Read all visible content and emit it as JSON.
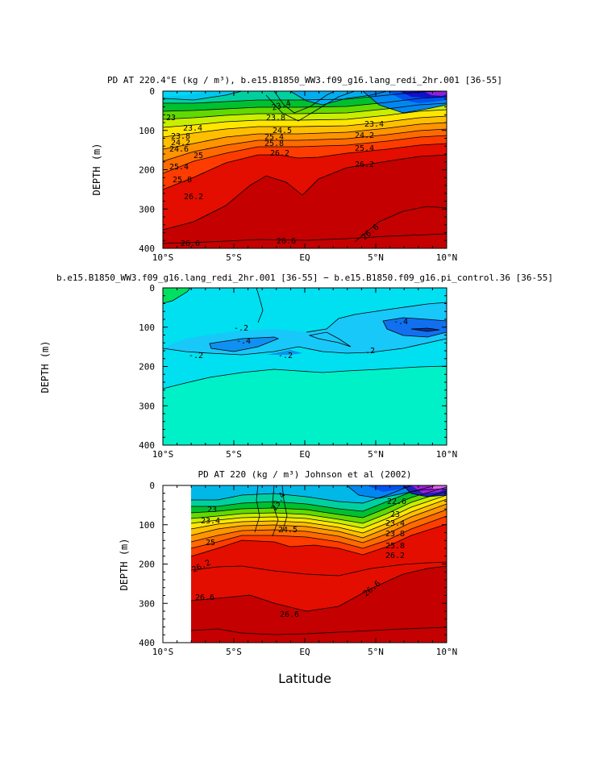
{
  "figure": {
    "xlabel": "Latitude"
  },
  "chart_data": [
    {
      "type": "contour",
      "title": "PD AT 220.4°E (kg / m³), b.e15.B1850_WW3.f09_g16.lang_redi_2hr.001 [36-55]",
      "ylabel": "DEPTH (m)",
      "xlim": [
        -10,
        10
      ],
      "ylim": [
        400,
        0
      ],
      "x_ticks": [
        "10°S",
        "5°S",
        "EQ",
        "5°N",
        "10°N"
      ],
      "y_ticks": [
        "0",
        "100",
        "200",
        "300",
        "400"
      ],
      "data_start_lat": -10,
      "levels": [
        22.6,
        23,
        23.4,
        23.8,
        24.2,
        24.6,
        25,
        25.4,
        25.8,
        26.2,
        26.6
      ],
      "contour_labels": [
        "23",
        "23.4",
        "23.8",
        "24.2",
        "24.6",
        "25",
        "25.4",
        "25.8",
        "26.2",
        "26.6",
        "24.5",
        "22.6"
      ]
    },
    {
      "type": "contour",
      "title": "b.e15.B1850_WW3.f09_g16.lang_redi_2hr.001 [36-55] − b.e15.B1850.f09_g16.pi_control.36 [36-55]",
      "ylabel": "DEPTH (m)",
      "xlim": [
        -10,
        10
      ],
      "ylim": [
        400,
        0
      ],
      "x_ticks": [
        "10°S",
        "5°S",
        "EQ",
        "5°N",
        "10°N"
      ],
      "y_ticks": [
        "0",
        "100",
        "200",
        "300",
        "400"
      ],
      "data_start_lat": -10,
      "levels": [
        -0.6,
        -0.4,
        -0.2,
        0,
        0.2
      ],
      "contour_labels": [
        "-.2",
        "-.4",
        "-.2",
        ".2",
        "-.2",
        "-.4",
        ".2"
      ]
    },
    {
      "type": "contour",
      "title": "PD AT 220 (kg / m³) Johnson et al (2002)",
      "ylabel": "DEPTH (m)",
      "xlim": [
        -10,
        10
      ],
      "ylim": [
        400,
        0
      ],
      "x_ticks": [
        "10°S",
        "5°S",
        "EQ",
        "5°N",
        "10°N"
      ],
      "y_ticks": [
        "0",
        "100",
        "200",
        "300",
        "400"
      ],
      "data_start_lat": -8,
      "levels": [
        22.6,
        23,
        23.4,
        23.8,
        24.2,
        24.6,
        25,
        25.4,
        25.8,
        26.2,
        26.6
      ],
      "contour_labels": [
        "23",
        "23.4",
        "25",
        "26.2",
        "26.6",
        "26.6",
        "22.6",
        "23",
        "23.4",
        "23.8",
        "25.8",
        "26.2",
        "26.6",
        "23.4",
        "24.5"
      ]
    }
  ]
}
